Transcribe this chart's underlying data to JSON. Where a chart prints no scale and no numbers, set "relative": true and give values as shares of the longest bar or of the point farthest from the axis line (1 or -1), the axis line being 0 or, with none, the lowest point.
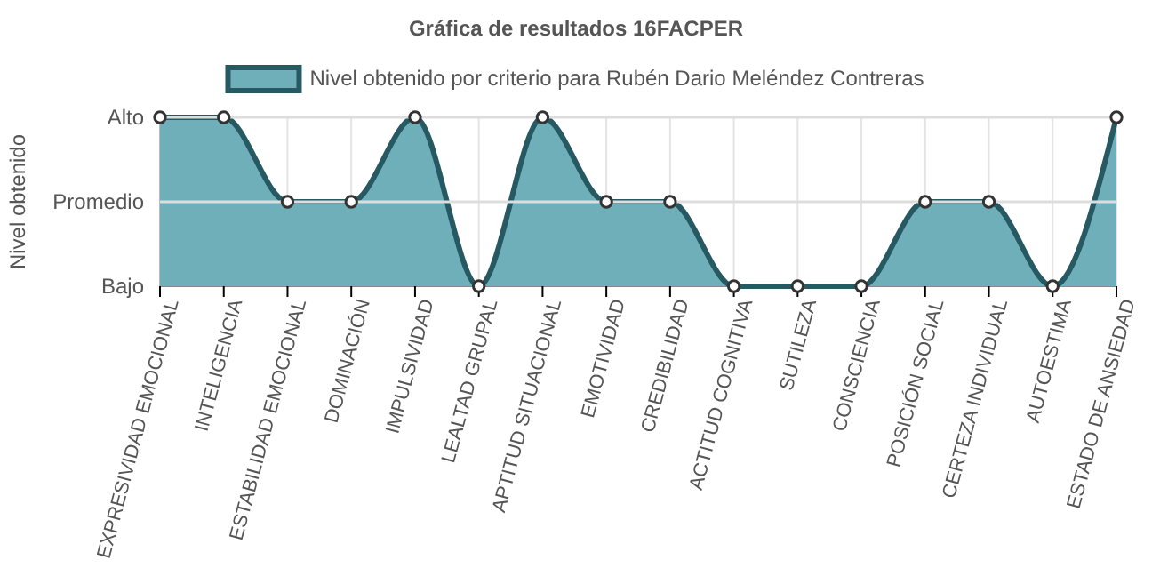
{
  "chart_data": {
    "type": "area",
    "title": "Gráfica de resultados 16FACPER",
    "ylabel": "Nivel obtenido",
    "categories": [
      "EXPRESIVIDAD EMOCIONAL",
      "INTELIGENCIA",
      "ESTABILIDAD EMOCIONAL",
      "DOMINACIÓN",
      "IMPULSIVIDAD",
      "LEALTAD GRUPAL",
      "APTITUD SITUACIONAL",
      "EMOTIVIDAD",
      "CREDIBILIDAD",
      "ACTITUD COGNITIVA",
      "SUTILEZA",
      "CONSCIENCIA",
      "POSICIÓN SOCIAL",
      "CERTEZA INDIVIDUAL",
      "AUTOESTIMA",
      "ESTADO DE ANSIEDAD"
    ],
    "series": [
      {
        "name": "Nivel obtenido por criterio para Rubén Dario Meléndez Contreras",
        "color": "#265961",
        "values": [
          1,
          1,
          0.5,
          0.5,
          1,
          0,
          1,
          0.5,
          0.5,
          0,
          0,
          0,
          0.5,
          0.5,
          0,
          1
        ]
      }
    ],
    "relative": true,
    "ref_lines": [
      {
        "axis": "y",
        "value": 1,
        "label": "Alto",
        "color": "#dddddd"
      },
      {
        "axis": "y",
        "value": 0.5,
        "label": "Promedio",
        "color": "#dddddd"
      }
    ],
    "annotations": [
      "Bajo"
    ],
    "grid": "x",
    "legend": "top",
    "marker": "circle"
  }
}
